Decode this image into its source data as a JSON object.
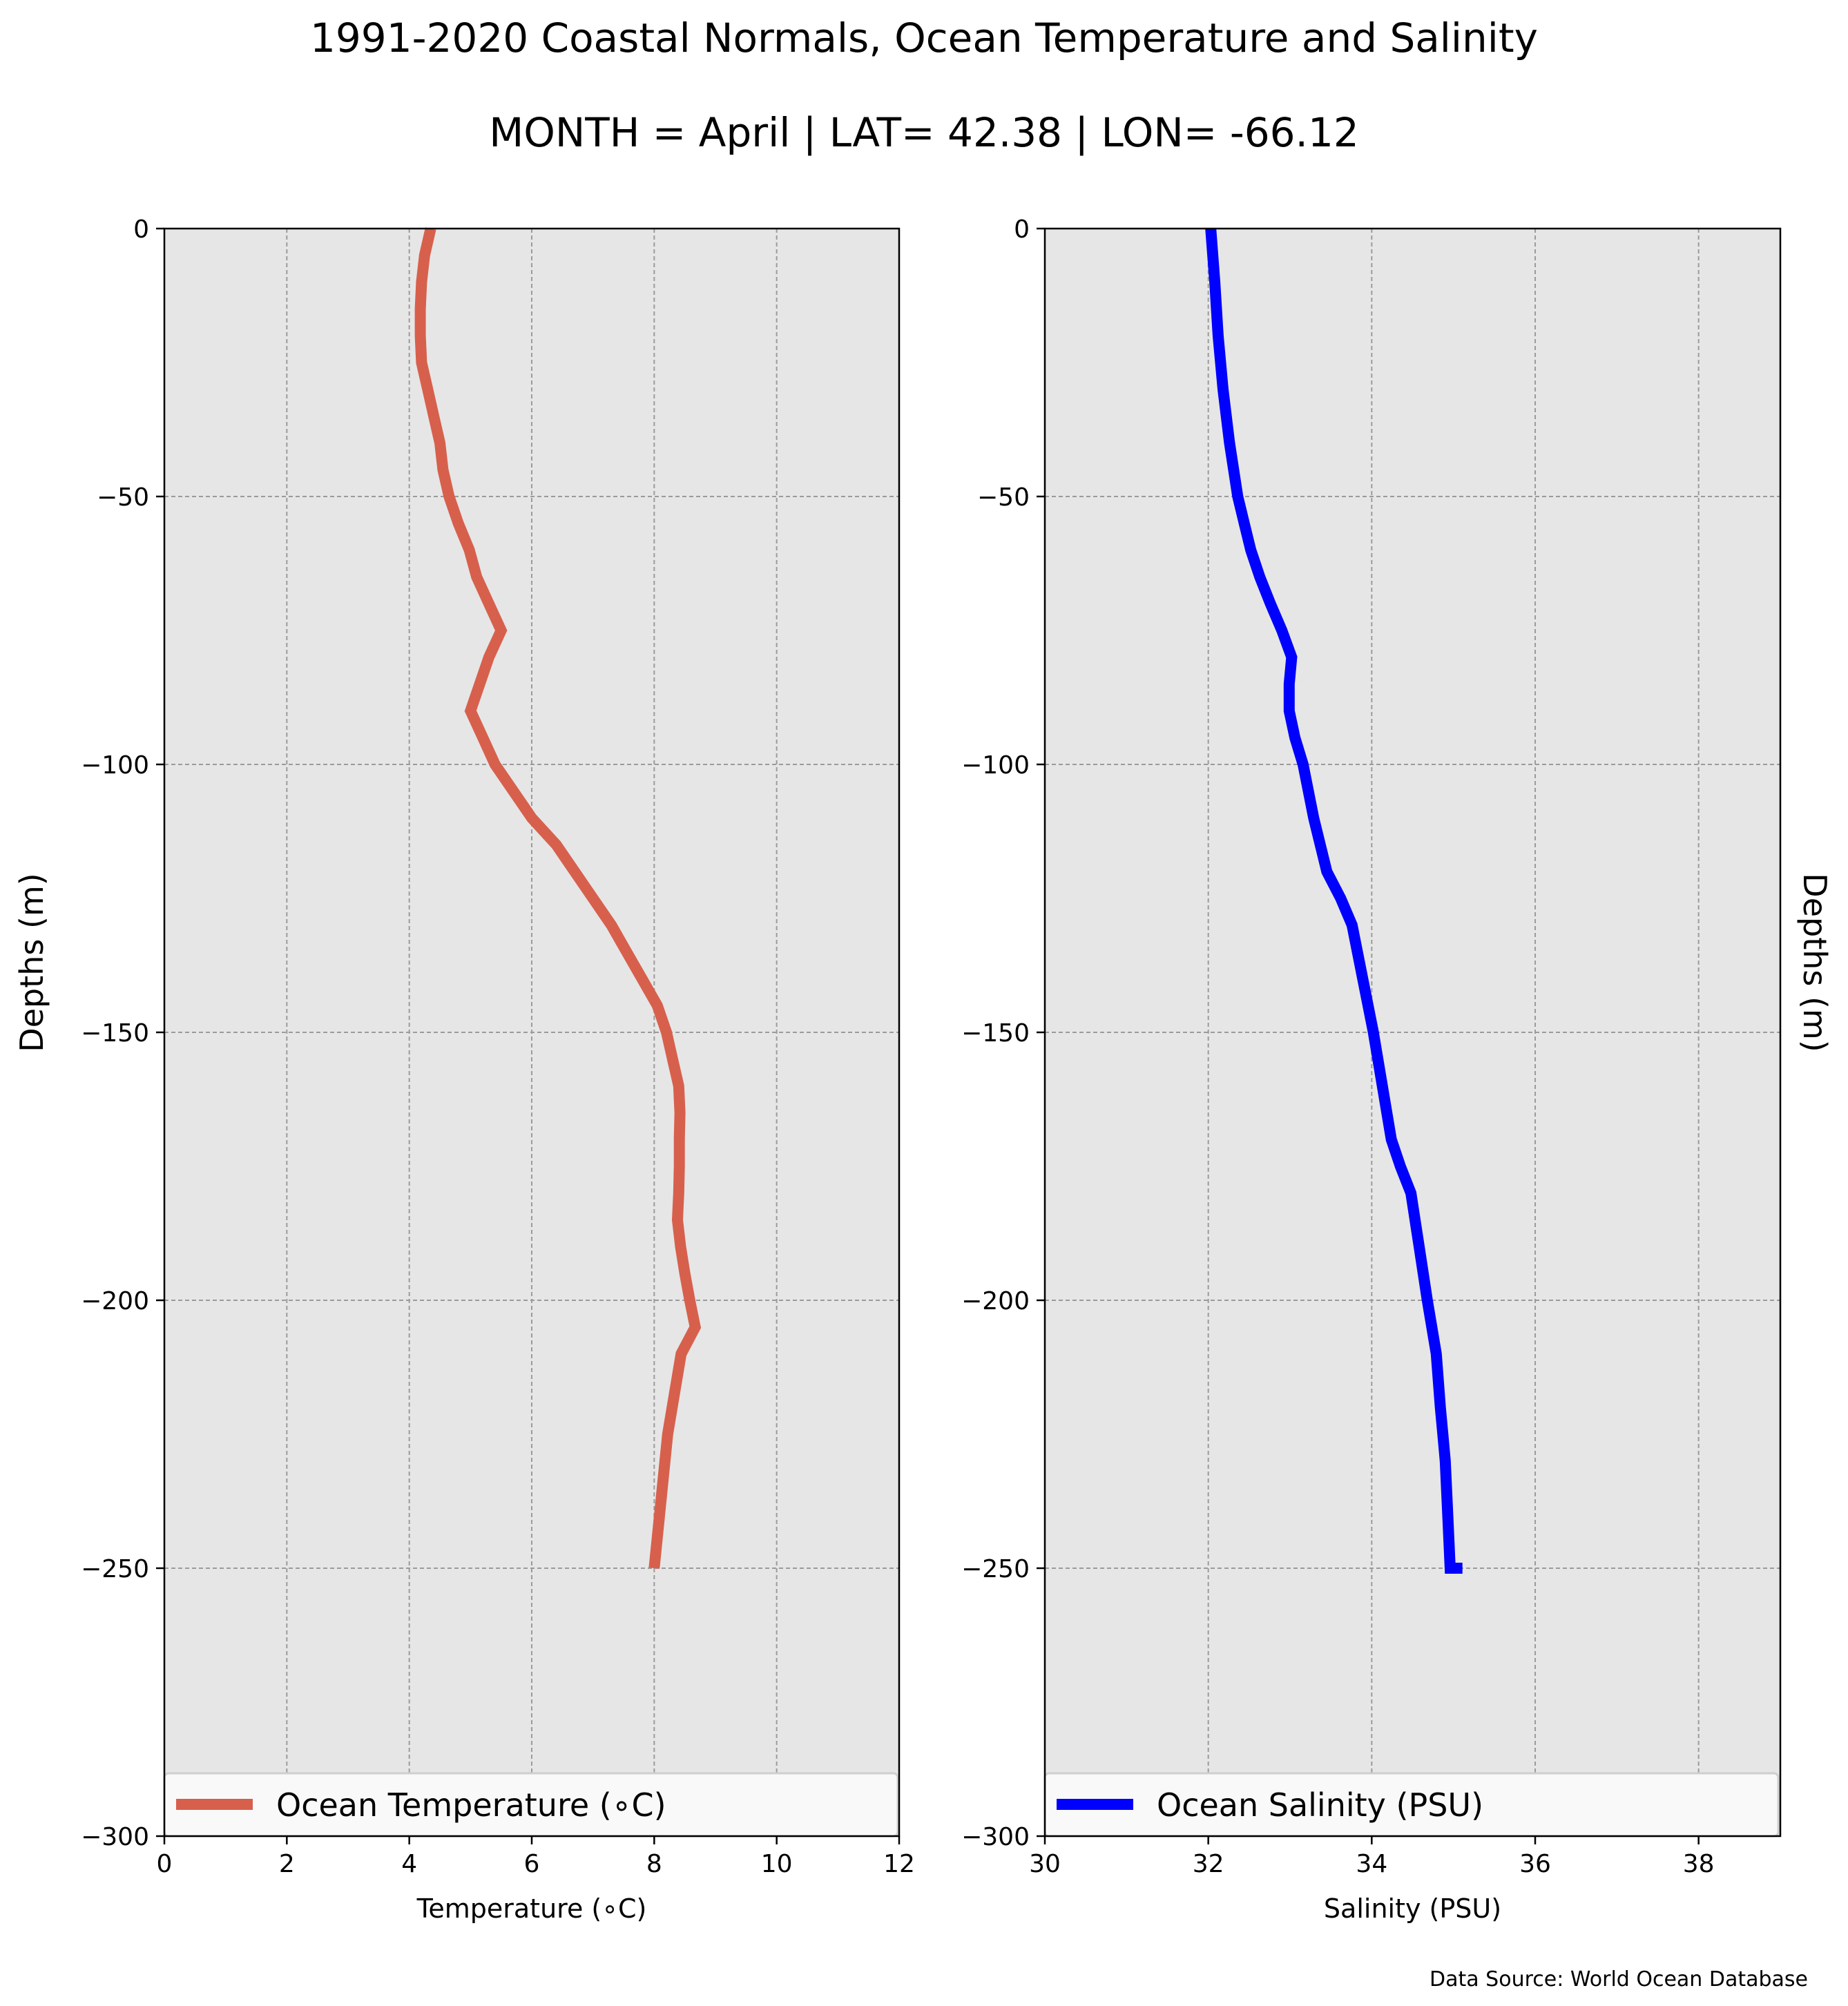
{
  "figure": {
    "title": "1991-2020 Coastal Normals, Ocean Temperature and Salinity",
    "subtitle": "MONTH = April | LAT= 42.38 | LON= -66.12",
    "source": "Data Source: World Ocean Database"
  },
  "chart_data": [
    {
      "type": "line",
      "title": "",
      "xlabel": "Temperature (∘C)",
      "ylabel": "Depths (m)",
      "xlim": [
        0,
        12
      ],
      "ylim": [
        -300,
        0
      ],
      "xticks": [
        0,
        2,
        4,
        6,
        8,
        10,
        12
      ],
      "yticks": [
        0,
        -50,
        -100,
        -150,
        -200,
        -250,
        -300
      ],
      "grid": true,
      "legend_position": "bottom",
      "series": [
        {
          "name": "Ocean Temperature (∘C)",
          "color": "#d7604d",
          "x": [
            4.35,
            4.25,
            4.2,
            4.18,
            4.18,
            4.2,
            4.3,
            4.4,
            4.5,
            4.55,
            4.65,
            4.8,
            4.98,
            5.1,
            5.3,
            5.5,
            5.3,
            5.15,
            5.0,
            5.2,
            5.4,
            5.7,
            6.0,
            6.4,
            6.7,
            7.0,
            7.3,
            7.55,
            7.8,
            8.05,
            8.2,
            8.3,
            8.4,
            8.42,
            8.41,
            8.41,
            8.4,
            8.38,
            8.43,
            8.5,
            8.58,
            8.67,
            8.44,
            8.22,
            8.0
          ],
          "y": [
            0,
            -5,
            -10,
            -15,
            -20,
            -25,
            -30,
            -35,
            -40,
            -45,
            -50,
            -55,
            -60,
            -65,
            -70,
            -75,
            -80,
            -85,
            -90,
            -95,
            -100,
            -105,
            -110,
            -115,
            -120,
            -125,
            -130,
            -135,
            -140,
            -145,
            -150,
            -155,
            -160,
            -165,
            -170,
            -175,
            -180,
            -185,
            -190,
            -195,
            -200,
            -205,
            -210,
            -225,
            -250
          ]
        }
      ]
    },
    {
      "type": "line",
      "title": "",
      "xlabel": "Salinity (PSU)",
      "ylabel": "Depths (m)",
      "xlim": [
        30,
        39
      ],
      "ylim": [
        -300,
        0
      ],
      "xticks": [
        30,
        32,
        34,
        36,
        38
      ],
      "yticks": [
        0,
        -50,
        -100,
        -150,
        -200,
        -250,
        -300
      ],
      "grid": true,
      "legend_position": "bottom",
      "series": [
        {
          "name": "Ocean Salinity (PSU)",
          "color": "#0000ff",
          "x": [
            32.03,
            32.08,
            32.12,
            32.18,
            32.26,
            32.36,
            32.44,
            32.52,
            32.63,
            32.76,
            32.9,
            33.02,
            32.99,
            32.99,
            33.06,
            33.16,
            33.29,
            33.45,
            33.62,
            33.76,
            33.89,
            34.02,
            34.13,
            34.24,
            34.35,
            34.48,
            34.58,
            34.68,
            34.79,
            34.84,
            34.87,
            34.9,
            34.93,
            34.96,
            34.99,
            35.03,
            35.07,
            35.11,
            35.11,
            35.09,
            35.07,
            35.05
          ],
          "y": [
            0,
            -10,
            -20,
            -30,
            -40,
            -50,
            -55,
            -60,
            -65,
            -70,
            -75,
            -80,
            -85,
            -90,
            -95,
            -100,
            -110,
            -120,
            -125,
            -130,
            -140,
            -150,
            -160,
            -170,
            -175,
            -180,
            -190,
            -200,
            -210,
            -220,
            -225,
            -230,
            -240,
            -250,
            -250,
            -250,
            -250,
            -250,
            -250,
            -250,
            -250,
            -250
          ]
        }
      ]
    }
  ]
}
